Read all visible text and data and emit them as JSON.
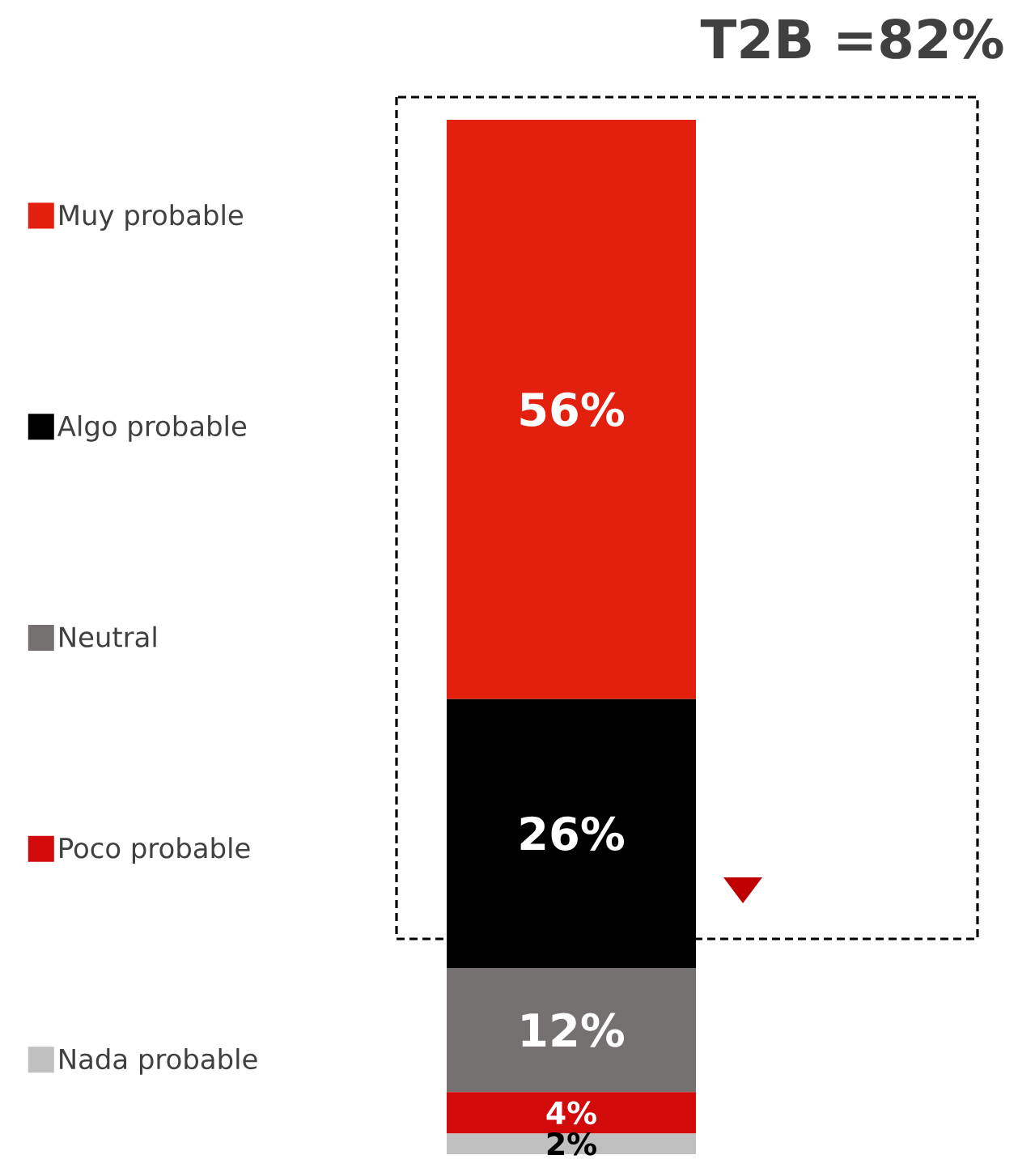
{
  "chart_data": {
    "type": "bar",
    "stacked": true,
    "legend": "left",
    "tick_labels": false,
    "categories": [
      null
    ],
    "annotations": [
      "T2B =82%"
    ],
    "series": [
      {
        "name": "Nada probable",
        "color": "#c0c0c0",
        "values": [
          2
        ],
        "value_labels": [
          "2%"
        ]
      },
      {
        "name": "Poco probable",
        "color": "#d20a0a",
        "values": [
          4
        ],
        "value_labels": [
          "4%"
        ]
      },
      {
        "name": "Neutral",
        "color": "#767171",
        "values": [
          12
        ],
        "value_labels": [
          "12%"
        ]
      },
      {
        "name": "Algo probable",
        "color": "#000000",
        "values": [
          26
        ],
        "value_labels": [
          "26%"
        ]
      },
      {
        "name": "Muy probable",
        "color": "#e3200e",
        "values": [
          56
        ],
        "value_labels": [
          "56%"
        ]
      }
    ]
  }
}
